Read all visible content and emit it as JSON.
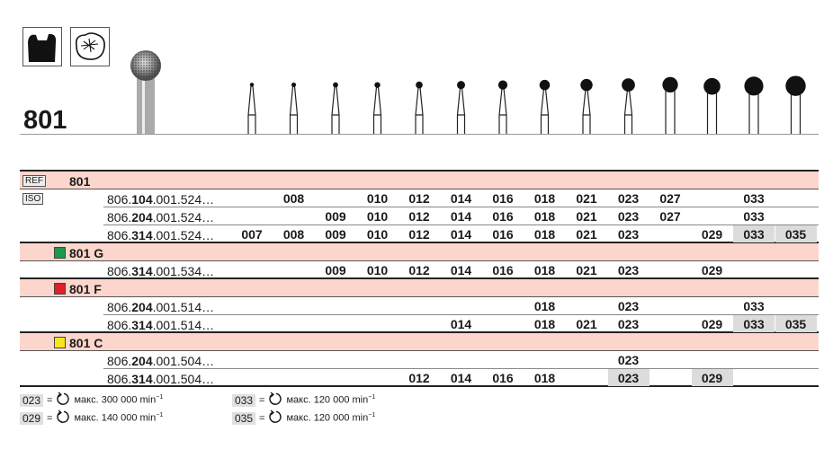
{
  "title": "801",
  "icons": [
    "crown-prep-icon",
    "occlusal-cavity-icon"
  ],
  "columns": [
    "007",
    "008",
    "009",
    "010",
    "012",
    "014",
    "016",
    "018",
    "021",
    "023",
    "027",
    "029",
    "033",
    "035"
  ],
  "bur_sizes": [
    "007",
    "008",
    "009",
    "010",
    "012",
    "014",
    "016",
    "018",
    "021",
    "023",
    "027",
    "029",
    "033",
    "035"
  ],
  "ref_label": "REF",
  "iso_label": "ISO",
  "groups": [
    {
      "name": "801",
      "color": null,
      "rows": [
        {
          "prefix": "806.",
          "mid": "104",
          "suffix": ".001.524…",
          "values": [
            "",
            "008",
            "",
            "010",
            "012",
            "014",
            "016",
            "018",
            "021",
            "023",
            "027",
            "",
            "033",
            ""
          ],
          "highlight": []
        },
        {
          "prefix": "806.",
          "mid": "204",
          "suffix": ".001.524…",
          "values": [
            "",
            "",
            "009",
            "010",
            "012",
            "014",
            "016",
            "018",
            "021",
            "023",
            "027",
            "",
            "033",
            ""
          ],
          "highlight": []
        },
        {
          "prefix": "806.",
          "mid": "314",
          "suffix": ".001.524…",
          "values": [
            "007",
            "008",
            "009",
            "010",
            "012",
            "014",
            "016",
            "018",
            "021",
            "023",
            "",
            "029",
            "033",
            "035"
          ],
          "highlight": [
            "033",
            "035"
          ]
        }
      ]
    },
    {
      "name": "801 G",
      "color": "#1a9a4a",
      "rows": [
        {
          "prefix": "806.",
          "mid": "314",
          "suffix": ".001.534…",
          "values": [
            "",
            "",
            "009",
            "010",
            "012",
            "014",
            "016",
            "018",
            "021",
            "023",
            "",
            "029",
            "",
            ""
          ],
          "highlight": []
        }
      ]
    },
    {
      "name": "801 F",
      "color": "#e0202a",
      "rows": [
        {
          "prefix": "806.",
          "mid": "204",
          "suffix": ".001.514…",
          "values": [
            "",
            "",
            "",
            "",
            "",
            "",
            "",
            "018",
            "",
            "023",
            "",
            "",
            "033",
            ""
          ],
          "highlight": []
        },
        {
          "prefix": "806.",
          "mid": "314",
          "suffix": ".001.514…",
          "values": [
            "",
            "",
            "",
            "",
            "",
            "014",
            "",
            "018",
            "021",
            "023",
            "",
            "029",
            "033",
            "035"
          ],
          "highlight": [
            "033",
            "035"
          ]
        }
      ]
    },
    {
      "name": "801 C",
      "color": "#f5e51c",
      "rows": [
        {
          "prefix": "806.",
          "mid": "204",
          "suffix": ".001.504…",
          "values": [
            "",
            "",
            "",
            "",
            "",
            "",
            "",
            "",
            "",
            "023",
            "",
            "",
            "",
            ""
          ],
          "highlight": []
        },
        {
          "prefix": "806.",
          "mid": "314",
          "suffix": ".001.504…",
          "values": [
            "",
            "",
            "",
            "",
            "012",
            "014",
            "016",
            "018",
            "",
            "023",
            "",
            "029",
            "",
            ""
          ],
          "highlight": [
            "023",
            "029"
          ]
        }
      ]
    }
  ],
  "legend": [
    {
      "code": "023",
      "eq": "=",
      "text": "макс. 300 000 min",
      "sup": "−1",
      "icon": "rotation-icon"
    },
    {
      "code": "029",
      "eq": "=",
      "text": "макс. 140 000 min",
      "sup": "−1",
      "icon": "rotation-icon"
    },
    {
      "code": "033",
      "eq": "=",
      "text": "макс. 120 000 min",
      "sup": "−1",
      "icon": "rotation-icon"
    },
    {
      "code": "035",
      "eq": "=",
      "text": "макс. 120 000 min",
      "sup": "−1",
      "icon": "rotation-icon"
    }
  ]
}
